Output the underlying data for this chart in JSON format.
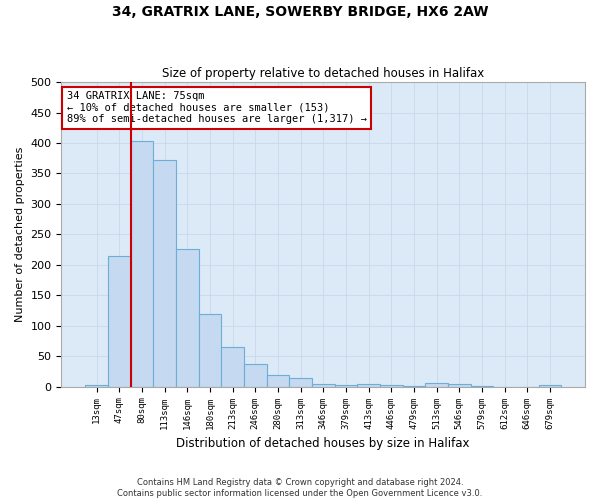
{
  "title_line1": "34, GRATRIX LANE, SOWERBY BRIDGE, HX6 2AW",
  "title_line2": "Size of property relative to detached houses in Halifax",
  "xlabel": "Distribution of detached houses by size in Halifax",
  "ylabel": "Number of detached properties",
  "categories": [
    "13sqm",
    "47sqm",
    "80sqm",
    "113sqm",
    "146sqm",
    "180sqm",
    "213sqm",
    "246sqm",
    "280sqm",
    "313sqm",
    "346sqm",
    "379sqm",
    "413sqm",
    "446sqm",
    "479sqm",
    "513sqm",
    "546sqm",
    "579sqm",
    "612sqm",
    "646sqm",
    "679sqm"
  ],
  "values": [
    3,
    215,
    403,
    372,
    226,
    120,
    65,
    38,
    19,
    14,
    5,
    3,
    5,
    3,
    1,
    6,
    4,
    1,
    0,
    0,
    2
  ],
  "bar_color": "#c5d9f0",
  "bar_edge_color": "#6baed6",
  "grid_color": "#c8d8ec",
  "bg_color": "#dce9f7",
  "fig_bg_color": "#ffffff",
  "vline_color": "#cc0000",
  "vline_x": 1.5,
  "annotation_text": "34 GRATRIX LANE: 75sqm\n← 10% of detached houses are smaller (153)\n89% of semi-detached houses are larger (1,317) →",
  "annotation_box_color": "#ffffff",
  "annotation_box_edge": "#cc0000",
  "ylim": [
    0,
    500
  ],
  "yticks": [
    0,
    50,
    100,
    150,
    200,
    250,
    300,
    350,
    400,
    450,
    500
  ],
  "footer_line1": "Contains HM Land Registry data © Crown copyright and database right 2024.",
  "footer_line2": "Contains public sector information licensed under the Open Government Licence v3.0."
}
